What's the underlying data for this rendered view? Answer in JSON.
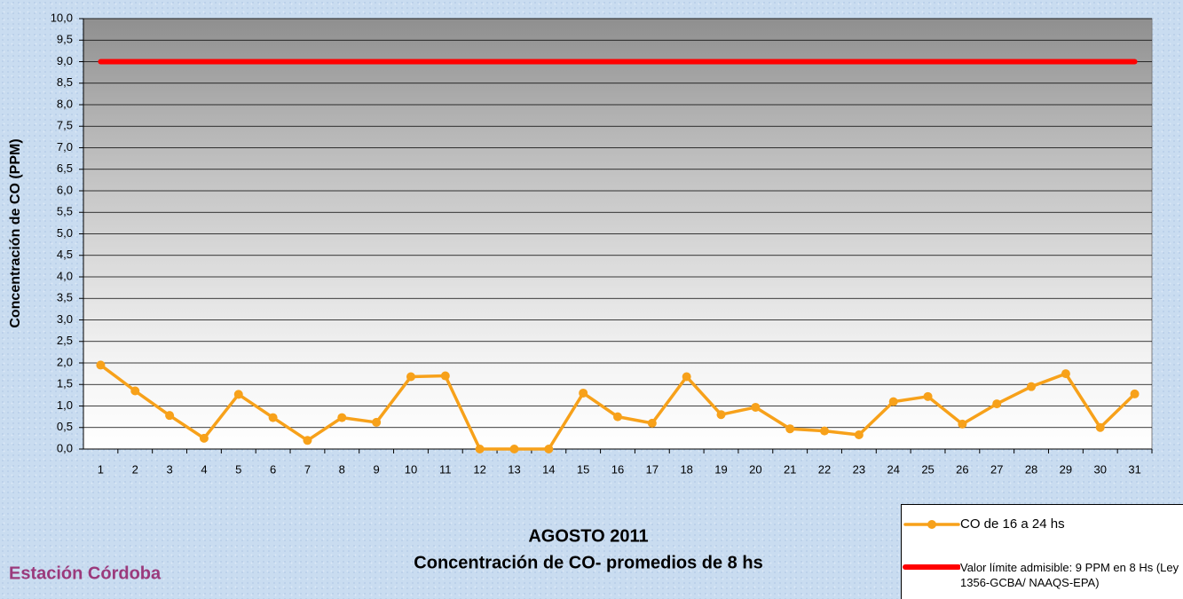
{
  "chart_data": {
    "type": "line",
    "title": "AGOSTO 2011",
    "subtitle": "Concentración de CO- promedios de 8 hs",
    "annotation": "Estación Córdoba",
    "y_label": "Concentración de CO (PPM)",
    "categories": [
      "1",
      "2",
      "3",
      "4",
      "5",
      "6",
      "7",
      "8",
      "9",
      "10",
      "11",
      "12",
      "13",
      "14",
      "15",
      "16",
      "17",
      "18",
      "19",
      "20",
      "21",
      "22",
      "23",
      "24",
      "25",
      "26",
      "27",
      "28",
      "29",
      "30",
      "31"
    ],
    "series": [
      {
        "name": "CO de 16 a 24 hs",
        "color": "#f7a11a",
        "marker": true,
        "values": [
          1.95,
          1.35,
          0.78,
          0.25,
          1.27,
          0.73,
          0.2,
          0.73,
          0.62,
          1.68,
          1.7,
          0,
          0,
          0,
          1.3,
          0.75,
          0.6,
          1.68,
          0.8,
          0.97,
          0.47,
          0.42,
          0.33,
          1.1,
          1.22,
          0.58,
          1.05,
          1.45,
          1.75,
          0.5,
          1.28
        ]
      },
      {
        "name": "Valor límite admisible: 9 PPM en 8 Hs (Ley 1356-GCBA/ NAAQS-EPA)",
        "color": "#ff0000",
        "marker": false,
        "values": [
          9,
          9,
          9,
          9,
          9,
          9,
          9,
          9,
          9,
          9,
          9,
          9,
          9,
          9,
          9,
          9,
          9,
          9,
          9,
          9,
          9,
          9,
          9,
          9,
          9,
          9,
          9,
          9,
          9,
          9,
          9
        ]
      }
    ],
    "ylim": [
      0,
      10
    ],
    "yticks": [
      {
        "value": 0,
        "label": "0,0"
      },
      {
        "value": 0.5,
        "label": "0,5"
      },
      {
        "value": 1,
        "label": "1,0"
      },
      {
        "value": 1.5,
        "label": "1,5"
      },
      {
        "value": 2,
        "label": "2,0"
      },
      {
        "value": 2.5,
        "label": "2,5"
      },
      {
        "value": 3,
        "label": "3,0"
      },
      {
        "value": 3.5,
        "label": "3,5"
      },
      {
        "value": 4,
        "label": "4,0"
      },
      {
        "value": 4.5,
        "label": "4,5"
      },
      {
        "value": 5,
        "label": "5,0"
      },
      {
        "value": 5.5,
        "label": "5,5"
      },
      {
        "value": 6,
        "label": "6,0"
      },
      {
        "value": 6.5,
        "label": "6,5"
      },
      {
        "value": 7,
        "label": "7,0"
      },
      {
        "value": 7.5,
        "label": "7,5"
      },
      {
        "value": 8,
        "label": "8,0"
      },
      {
        "value": 8.5,
        "label": "8,5"
      },
      {
        "value": 9,
        "label": "9,0"
      },
      {
        "value": 9.5,
        "label": "9,5"
      },
      {
        "value": 10,
        "label": "10,0"
      }
    ],
    "grid": true,
    "legend": "bottom-right"
  }
}
